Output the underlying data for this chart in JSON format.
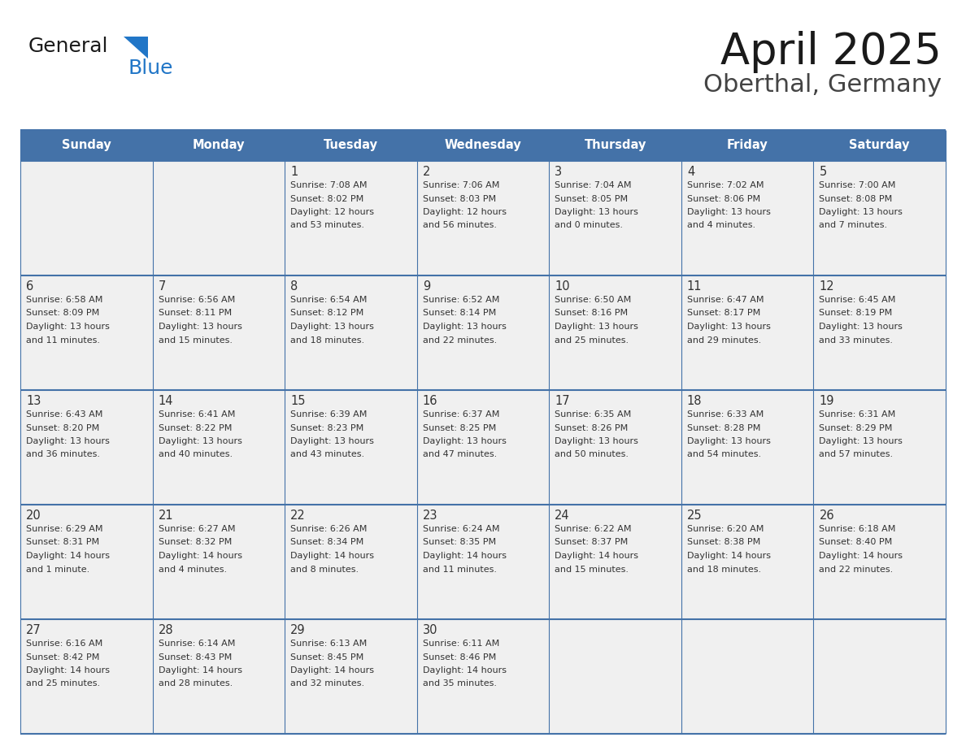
{
  "title": "April 2025",
  "subtitle": "Oberthal, Germany",
  "days_of_week": [
    "Sunday",
    "Monday",
    "Tuesday",
    "Wednesday",
    "Thursday",
    "Friday",
    "Saturday"
  ],
  "header_bg": "#4472a8",
  "header_text_color": "#ffffff",
  "row_bg": "#f0f0f0",
  "cell_text_color": "#333333",
  "day_num_color": "#333333",
  "grid_line_color": "#4472a8",
  "title_color": "#1a1a1a",
  "subtitle_color": "#444444",
  "logo_general_color": "#1a1a1a",
  "logo_blue_color": "#2176c7",
  "weeks": [
    [
      {
        "day": null,
        "sunrise": null,
        "sunset": null,
        "daylight": null
      },
      {
        "day": null,
        "sunrise": null,
        "sunset": null,
        "daylight": null
      },
      {
        "day": 1,
        "sunrise": "7:08 AM",
        "sunset": "8:02 PM",
        "daylight": "12 hours\nand 53 minutes."
      },
      {
        "day": 2,
        "sunrise": "7:06 AM",
        "sunset": "8:03 PM",
        "daylight": "12 hours\nand 56 minutes."
      },
      {
        "day": 3,
        "sunrise": "7:04 AM",
        "sunset": "8:05 PM",
        "daylight": "13 hours\nand 0 minutes."
      },
      {
        "day": 4,
        "sunrise": "7:02 AM",
        "sunset": "8:06 PM",
        "daylight": "13 hours\nand 4 minutes."
      },
      {
        "day": 5,
        "sunrise": "7:00 AM",
        "sunset": "8:08 PM",
        "daylight": "13 hours\nand 7 minutes."
      }
    ],
    [
      {
        "day": 6,
        "sunrise": "6:58 AM",
        "sunset": "8:09 PM",
        "daylight": "13 hours\nand 11 minutes."
      },
      {
        "day": 7,
        "sunrise": "6:56 AM",
        "sunset": "8:11 PM",
        "daylight": "13 hours\nand 15 minutes."
      },
      {
        "day": 8,
        "sunrise": "6:54 AM",
        "sunset": "8:12 PM",
        "daylight": "13 hours\nand 18 minutes."
      },
      {
        "day": 9,
        "sunrise": "6:52 AM",
        "sunset": "8:14 PM",
        "daylight": "13 hours\nand 22 minutes."
      },
      {
        "day": 10,
        "sunrise": "6:50 AM",
        "sunset": "8:16 PM",
        "daylight": "13 hours\nand 25 minutes."
      },
      {
        "day": 11,
        "sunrise": "6:47 AM",
        "sunset": "8:17 PM",
        "daylight": "13 hours\nand 29 minutes."
      },
      {
        "day": 12,
        "sunrise": "6:45 AM",
        "sunset": "8:19 PM",
        "daylight": "13 hours\nand 33 minutes."
      }
    ],
    [
      {
        "day": 13,
        "sunrise": "6:43 AM",
        "sunset": "8:20 PM",
        "daylight": "13 hours\nand 36 minutes."
      },
      {
        "day": 14,
        "sunrise": "6:41 AM",
        "sunset": "8:22 PM",
        "daylight": "13 hours\nand 40 minutes."
      },
      {
        "day": 15,
        "sunrise": "6:39 AM",
        "sunset": "8:23 PM",
        "daylight": "13 hours\nand 43 minutes."
      },
      {
        "day": 16,
        "sunrise": "6:37 AM",
        "sunset": "8:25 PM",
        "daylight": "13 hours\nand 47 minutes."
      },
      {
        "day": 17,
        "sunrise": "6:35 AM",
        "sunset": "8:26 PM",
        "daylight": "13 hours\nand 50 minutes."
      },
      {
        "day": 18,
        "sunrise": "6:33 AM",
        "sunset": "8:28 PM",
        "daylight": "13 hours\nand 54 minutes."
      },
      {
        "day": 19,
        "sunrise": "6:31 AM",
        "sunset": "8:29 PM",
        "daylight": "13 hours\nand 57 minutes."
      }
    ],
    [
      {
        "day": 20,
        "sunrise": "6:29 AM",
        "sunset": "8:31 PM",
        "daylight": "14 hours\nand 1 minute."
      },
      {
        "day": 21,
        "sunrise": "6:27 AM",
        "sunset": "8:32 PM",
        "daylight": "14 hours\nand 4 minutes."
      },
      {
        "day": 22,
        "sunrise": "6:26 AM",
        "sunset": "8:34 PM",
        "daylight": "14 hours\nand 8 minutes."
      },
      {
        "day": 23,
        "sunrise": "6:24 AM",
        "sunset": "8:35 PM",
        "daylight": "14 hours\nand 11 minutes."
      },
      {
        "day": 24,
        "sunrise": "6:22 AM",
        "sunset": "8:37 PM",
        "daylight": "14 hours\nand 15 minutes."
      },
      {
        "day": 25,
        "sunrise": "6:20 AM",
        "sunset": "8:38 PM",
        "daylight": "14 hours\nand 18 minutes."
      },
      {
        "day": 26,
        "sunrise": "6:18 AM",
        "sunset": "8:40 PM",
        "daylight": "14 hours\nand 22 minutes."
      }
    ],
    [
      {
        "day": 27,
        "sunrise": "6:16 AM",
        "sunset": "8:42 PM",
        "daylight": "14 hours\nand 25 minutes."
      },
      {
        "day": 28,
        "sunrise": "6:14 AM",
        "sunset": "8:43 PM",
        "daylight": "14 hours\nand 28 minutes."
      },
      {
        "day": 29,
        "sunrise": "6:13 AM",
        "sunset": "8:45 PM",
        "daylight": "14 hours\nand 32 minutes."
      },
      {
        "day": 30,
        "sunrise": "6:11 AM",
        "sunset": "8:46 PM",
        "daylight": "14 hours\nand 35 minutes."
      },
      {
        "day": null,
        "sunrise": null,
        "sunset": null,
        "daylight": null
      },
      {
        "day": null,
        "sunrise": null,
        "sunset": null,
        "daylight": null
      },
      {
        "day": null,
        "sunrise": null,
        "sunset": null,
        "daylight": null
      }
    ]
  ]
}
